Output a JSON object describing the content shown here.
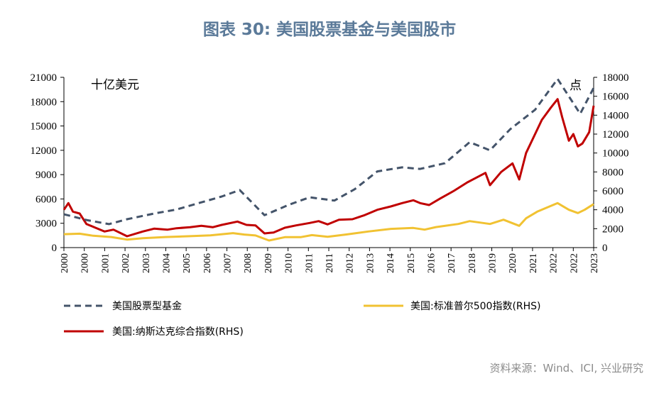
{
  "title": "图表 30: 美国股票基金与美国股市",
  "source": "资料来源：Wind、ICI, 兴业研究",
  "chart_data": {
    "type": "line",
    "left_unit_label": "十亿美元",
    "right_unit_label": "点",
    "left_axis": {
      "min": 0,
      "max": 21000,
      "ticks": [
        "0",
        "3000",
        "6000",
        "9000",
        "12000",
        "15000",
        "18000",
        "21000"
      ]
    },
    "right_axis": {
      "min": 0,
      "max": 18000,
      "ticks": [
        "0",
        "2000",
        "4000",
        "6000",
        "8000",
        "10000",
        "12000",
        "14000",
        "16000",
        "18000"
      ]
    },
    "x_ticks": [
      "2000",
      "2000",
      "2001",
      "2002",
      "2003",
      "2004",
      "2005",
      "2006",
      "2007",
      "2008",
      "2009",
      "2010",
      "2011",
      "2011",
      "2012",
      "2013",
      "2014",
      "2015",
      "2016",
      "2017",
      "2018",
      "2019",
      "2020",
      "2021",
      "2022",
      "2022",
      "2023"
    ],
    "x_range": [
      2000.0,
      2023.5
    ],
    "series": [
      {
        "name": "美国股票型基金",
        "axis": "left",
        "color": "#44546a",
        "style": "dashed",
        "points": [
          [
            2000.0,
            4100
          ],
          [
            2000.3,
            3900
          ],
          [
            2001.0,
            3400
          ],
          [
            2002.0,
            2900
          ],
          [
            2002.8,
            3500
          ],
          [
            2004.0,
            4200
          ],
          [
            2005.0,
            4700
          ],
          [
            2006.0,
            5500
          ],
          [
            2007.0,
            6300
          ],
          [
            2007.8,
            7100
          ],
          [
            2008.9,
            4000
          ],
          [
            2010.0,
            5300
          ],
          [
            2010.9,
            6200
          ],
          [
            2012.0,
            5800
          ],
          [
            2012.9,
            7200
          ],
          [
            2013.9,
            9400
          ],
          [
            2015.0,
            9900
          ],
          [
            2015.8,
            9700
          ],
          [
            2016.9,
            10400
          ],
          [
            2018.0,
            13000
          ],
          [
            2018.9,
            12000
          ],
          [
            2019.8,
            14600
          ],
          [
            2020.9,
            17000
          ],
          [
            2021.9,
            20800
          ],
          [
            2022.9,
            16500
          ],
          [
            2023.5,
            19700
          ]
        ]
      },
      {
        "name": "美国:标准普尔500指数(RHS)",
        "axis": "right",
        "color": "#f1c232",
        "style": "solid",
        "points": [
          [
            2000.0,
            1420
          ],
          [
            2000.7,
            1470
          ],
          [
            2001.3,
            1250
          ],
          [
            2002.1,
            1120
          ],
          [
            2002.8,
            850
          ],
          [
            2003.5,
            1000
          ],
          [
            2004.5,
            1120
          ],
          [
            2005.5,
            1200
          ],
          [
            2006.5,
            1300
          ],
          [
            2007.5,
            1530
          ],
          [
            2008.0,
            1380
          ],
          [
            2008.5,
            1280
          ],
          [
            2009.1,
            750
          ],
          [
            2009.8,
            1100
          ],
          [
            2010.5,
            1100
          ],
          [
            2011.0,
            1320
          ],
          [
            2011.7,
            1150
          ],
          [
            2012.5,
            1380
          ],
          [
            2013.5,
            1700
          ],
          [
            2014.5,
            1980
          ],
          [
            2015.5,
            2080
          ],
          [
            2016.0,
            1900
          ],
          [
            2016.5,
            2170
          ],
          [
            2017.5,
            2500
          ],
          [
            2018.0,
            2800
          ],
          [
            2018.9,
            2500
          ],
          [
            2019.5,
            2950
          ],
          [
            2020.2,
            2300
          ],
          [
            2020.5,
            3100
          ],
          [
            2021.0,
            3800
          ],
          [
            2021.9,
            4700
          ],
          [
            2022.4,
            4000
          ],
          [
            2022.8,
            3650
          ],
          [
            2023.1,
            4000
          ],
          [
            2023.5,
            4600
          ]
        ]
      },
      {
        "name": "美国:纳斯达克综合指数(RHS)",
        "axis": "right",
        "color": "#c00000",
        "style": "solid",
        "points": [
          [
            2000.0,
            4000
          ],
          [
            2000.2,
            4700
          ],
          [
            2000.4,
            3800
          ],
          [
            2000.7,
            3600
          ],
          [
            2001.0,
            2500
          ],
          [
            2001.4,
            2100
          ],
          [
            2001.8,
            1700
          ],
          [
            2002.2,
            1900
          ],
          [
            2002.8,
            1200
          ],
          [
            2003.5,
            1700
          ],
          [
            2004.0,
            2000
          ],
          [
            2004.6,
            1900
          ],
          [
            2005.0,
            2050
          ],
          [
            2005.6,
            2150
          ],
          [
            2006.1,
            2300
          ],
          [
            2006.6,
            2150
          ],
          [
            2007.0,
            2400
          ],
          [
            2007.7,
            2750
          ],
          [
            2008.1,
            2400
          ],
          [
            2008.5,
            2350
          ],
          [
            2008.9,
            1500
          ],
          [
            2009.3,
            1600
          ],
          [
            2009.8,
            2100
          ],
          [
            2010.3,
            2350
          ],
          [
            2010.9,
            2600
          ],
          [
            2011.3,
            2800
          ],
          [
            2011.7,
            2450
          ],
          [
            2012.2,
            2950
          ],
          [
            2012.8,
            3000
          ],
          [
            2013.3,
            3400
          ],
          [
            2013.9,
            4000
          ],
          [
            2014.5,
            4350
          ],
          [
            2015.0,
            4700
          ],
          [
            2015.5,
            5000
          ],
          [
            2015.8,
            4700
          ],
          [
            2016.2,
            4500
          ],
          [
            2016.7,
            5200
          ],
          [
            2017.3,
            6000
          ],
          [
            2017.9,
            6900
          ],
          [
            2018.7,
            7900
          ],
          [
            2018.9,
            6600
          ],
          [
            2019.4,
            8000
          ],
          [
            2019.9,
            8900
          ],
          [
            2020.2,
            7200
          ],
          [
            2020.5,
            10000
          ],
          [
            2020.9,
            12000
          ],
          [
            2021.2,
            13500
          ],
          [
            2021.6,
            14800
          ],
          [
            2021.9,
            15700
          ],
          [
            2022.1,
            13800
          ],
          [
            2022.4,
            11300
          ],
          [
            2022.6,
            12000
          ],
          [
            2022.8,
            10700
          ],
          [
            2023.0,
            11000
          ],
          [
            2023.3,
            12200
          ],
          [
            2023.5,
            15000
          ]
        ]
      }
    ],
    "legend_position": "bottom"
  }
}
